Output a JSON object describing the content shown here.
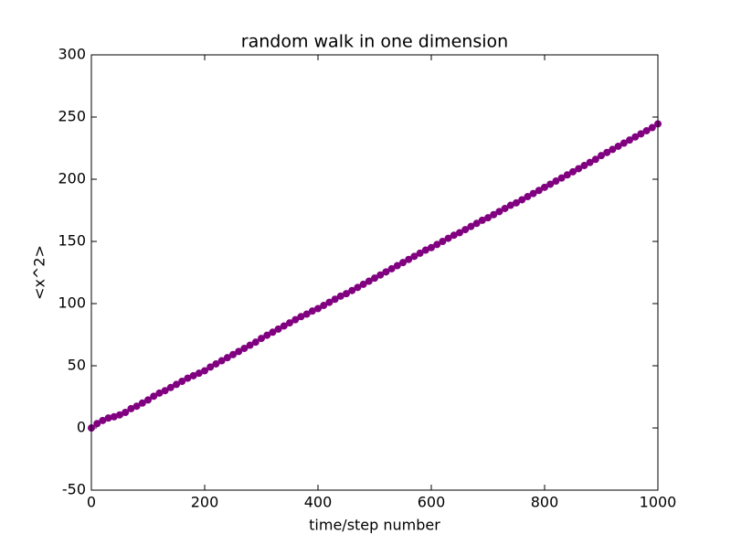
{
  "chart_data": {
    "type": "line",
    "title": "random walk in one dimension",
    "x_label": "time/step number",
    "y_label": "<x^2>",
    "x": [
      0,
      10,
      20,
      30,
      40,
      50,
      60,
      70,
      80,
      90,
      100,
      110,
      120,
      130,
      140,
      150,
      160,
      170,
      180,
      190,
      200,
      210,
      220,
      230,
      240,
      250,
      260,
      270,
      280,
      290,
      300,
      310,
      320,
      330,
      340,
      350,
      360,
      370,
      380,
      390,
      400,
      410,
      420,
      430,
      440,
      450,
      460,
      470,
      480,
      490,
      500,
      510,
      520,
      530,
      540,
      550,
      560,
      570,
      580,
      590,
      600,
      610,
      620,
      630,
      640,
      650,
      660,
      670,
      680,
      690,
      700,
      710,
      720,
      730,
      740,
      750,
      760,
      770,
      780,
      790,
      800,
      810,
      820,
      830,
      840,
      850,
      860,
      870,
      880,
      890,
      900,
      910,
      920,
      930,
      940,
      950,
      960,
      970,
      980,
      990,
      1000
    ],
    "values": [
      0,
      3.5,
      6,
      8,
      9,
      10.5,
      12.5,
      15.5,
      17.5,
      20,
      22.5,
      25.5,
      28,
      30,
      32.5,
      35,
      37.5,
      40,
      42,
      44,
      46,
      49,
      51.5,
      54,
      56.5,
      59,
      61.5,
      64,
      66.5,
      69,
      72,
      74.5,
      77,
      79.5,
      82,
      84.5,
      87,
      89.5,
      91.5,
      94,
      96,
      98.5,
      101,
      103.5,
      106,
      108,
      110.5,
      113,
      115.5,
      118,
      120.5,
      123,
      125.5,
      128,
      130.5,
      133,
      135.5,
      138,
      140.5,
      143,
      145,
      147.5,
      150,
      152.5,
      155,
      157,
      159.5,
      162,
      164.5,
      167,
      169,
      171.5,
      174,
      176.5,
      179,
      181,
      183.5,
      186,
      188.5,
      191,
      193.5,
      196,
      198.5,
      201,
      203.5,
      206,
      208.5,
      211,
      213.5,
      216,
      219,
      221.5,
      224,
      226.5,
      229,
      231.5,
      234,
      236.5,
      239,
      241.5,
      244.5
    ],
    "color": "#800080",
    "xlim": [
      0,
      1000
    ],
    "xticks": [
      0,
      200,
      400,
      600,
      800,
      1000
    ],
    "ylim": [
      -50,
      300
    ],
    "yticks": [
      -50,
      0,
      50,
      100,
      150,
      200,
      250,
      300
    ]
  }
}
